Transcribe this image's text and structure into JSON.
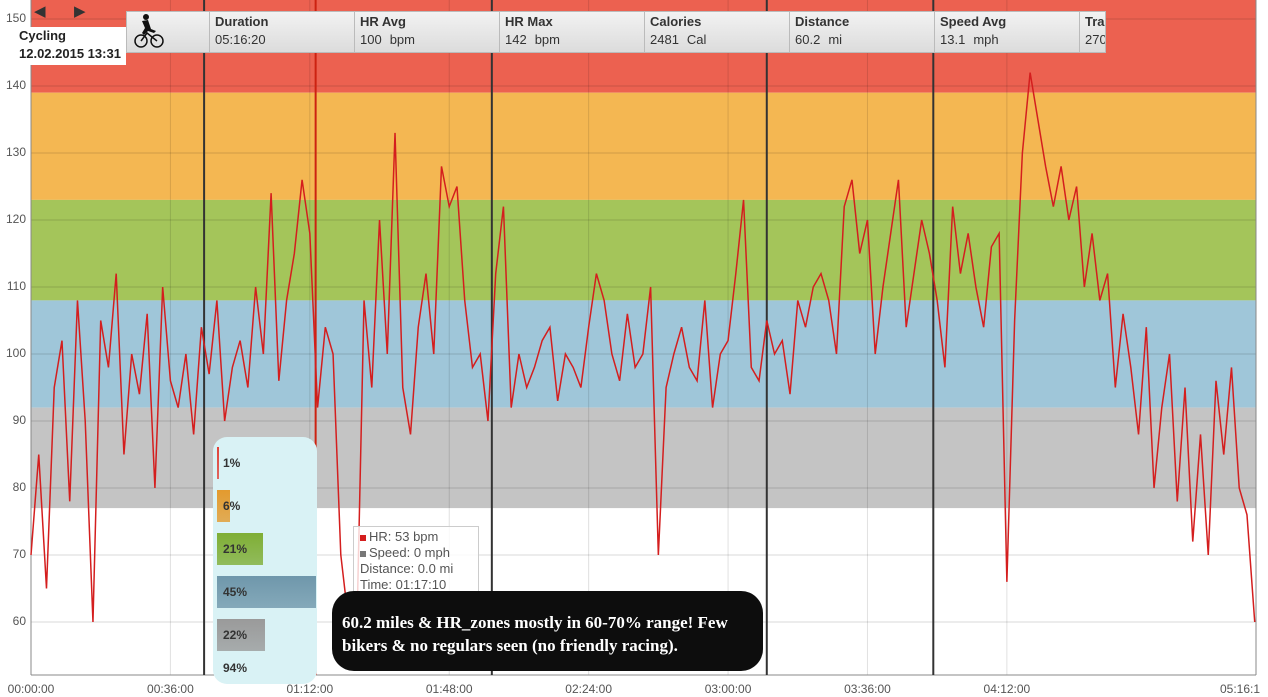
{
  "header": {
    "activity": "Cycling",
    "datetime": "12.02.2015 13:31",
    "prev_icon": "triangle-left-icon",
    "next_icon": "triangle-right-icon",
    "activity_icon": "cyclist-icon",
    "stats": [
      {
        "label": "Duration",
        "value": "05:16:20",
        "unit": ""
      },
      {
        "label": "HR Avg",
        "value": "100",
        "unit": "bpm"
      },
      {
        "label": "HR Max",
        "value": "142",
        "unit": "bpm"
      },
      {
        "label": "Calories",
        "value": "2481",
        "unit": "Cal"
      },
      {
        "label": "Distance",
        "value": "60.2",
        "unit": "mi"
      },
      {
        "label": "Speed Avg",
        "value": "13.1",
        "unit": "mph"
      },
      {
        "label": "Trai",
        "value": "270",
        "unit": ""
      }
    ]
  },
  "zones": {
    "items": [
      {
        "label": "1%",
        "pct": 1,
        "color": "#e0433a"
      },
      {
        "label": "6%",
        "pct": 6,
        "color": "#e39a2e"
      },
      {
        "label": "21%",
        "pct": 21,
        "color": "#7fae35"
      },
      {
        "label": "45%",
        "pct": 45,
        "color": "#6f97ab"
      },
      {
        "label": "22%",
        "pct": 22,
        "color": "#9a9a9a"
      }
    ],
    "total": "94%"
  },
  "tooltip": {
    "hr": "HR: 53 bpm",
    "speed": "Speed: 0 mph",
    "distance": "Distance: 0.0 mi",
    "time": "Time: 01:17:10"
  },
  "note": "60.2 miles & HR_zones mostly in 60-70% range! Few bikers & no regulars seen (no friendly racing).",
  "chart_data": {
    "type": "line",
    "ylim": [
      54,
      150
    ],
    "xlim_minutes": [
      0,
      316.33
    ],
    "yticks": [
      "60",
      "70",
      "80",
      "90",
      "100",
      "110",
      "120",
      "130",
      "140",
      "150"
    ],
    "xticks": [
      "00:00:00",
      "00:36:00",
      "01:12:00",
      "01:48:00",
      "02:24:00",
      "03:00:00",
      "03:36:00",
      "04:12:00",
      "05:16:1"
    ],
    "bands": [
      {
        "from": 139,
        "to": 150,
        "color": "#ec6150"
      },
      {
        "from": 123,
        "to": 139,
        "color": "#f4b752"
      },
      {
        "from": 108,
        "to": 123,
        "color": "#a4c55a"
      },
      {
        "from": 92,
        "to": 108,
        "color": "#9fc6d9"
      },
      {
        "from": 77,
        "to": 92,
        "color": "#c4c4c4"
      }
    ],
    "markers_minutes": [
      44.7,
      73.5,
      119,
      190,
      233
    ],
    "series": [
      {
        "name": "HR",
        "color": "#d41e1e",
        "step_minutes": 2,
        "values": [
          70,
          85,
          65,
          95,
          102,
          78,
          108,
          90,
          60,
          105,
          98,
          112,
          85,
          100,
          94,
          106,
          80,
          110,
          96,
          92,
          100,
          88,
          104,
          97,
          108,
          90,
          98,
          102,
          95,
          110,
          100,
          124,
          96,
          108,
          115,
          126,
          118,
          92,
          104,
          100,
          70,
          60,
          55,
          108,
          95,
          120,
          100,
          133,
          95,
          88,
          104,
          112,
          100,
          128,
          122,
          125,
          108,
          98,
          100,
          90,
          112,
          122,
          92,
          100,
          95,
          98,
          102,
          104,
          93,
          100,
          98,
          95,
          104,
          112,
          108,
          100,
          96,
          106,
          98,
          100,
          110,
          70,
          95,
          100,
          104,
          98,
          96,
          108,
          92,
          100,
          102,
          112,
          123,
          98,
          96,
          105,
          100,
          102,
          94,
          108,
          104,
          110,
          112,
          108,
          100,
          122,
          126,
          115,
          120,
          100,
          110,
          118,
          126,
          104,
          112,
          120,
          115,
          108,
          98,
          122,
          112,
          118,
          110,
          104,
          116,
          118,
          66,
          105,
          130,
          142,
          135,
          128,
          122,
          128,
          120,
          125,
          110,
          118,
          108,
          112,
          95,
          106,
          98,
          88,
          104,
          80,
          92,
          100,
          78,
          95,
          72,
          88,
          70,
          96,
          85,
          98,
          80,
          76,
          60
        ]
      }
    ]
  }
}
